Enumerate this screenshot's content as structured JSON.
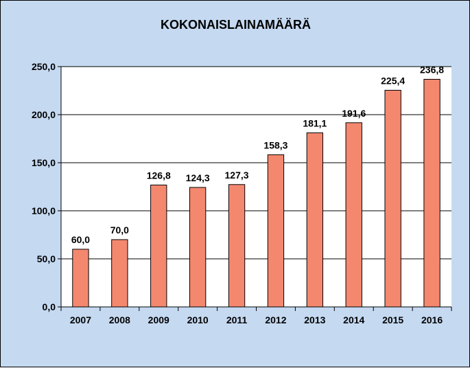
{
  "chart_data": {
    "type": "bar",
    "title": "KOKONAISLAINAMÄÄRÄ",
    "xlabel": "",
    "ylabel": "",
    "categories": [
      "2007",
      "2008",
      "2009",
      "2010",
      "2011",
      "2012",
      "2013",
      "2014",
      "2015",
      "2016"
    ],
    "values": [
      60.0,
      70.0,
      126.8,
      124.3,
      127.3,
      158.3,
      181.1,
      191.6,
      225.4,
      236.8
    ],
    "value_labels": [
      "60,0",
      "70,0",
      "126,8",
      "124,3",
      "127,3",
      "158,3",
      "181,1",
      "191,6",
      "225,4",
      "236,8"
    ],
    "ylim": [
      0,
      250
    ],
    "y_ticks": [
      0,
      50,
      100,
      150,
      200,
      250
    ],
    "y_tick_labels": [
      "0,0",
      "50,0",
      "100,0",
      "150,0",
      "200,0",
      "250,0"
    ],
    "grid": true,
    "legend": "none",
    "colors": {
      "background": "#c5d9f1",
      "plot_area": "#ffffff",
      "bar_fill": "#f4886f",
      "bar_stroke": "#000000"
    }
  }
}
